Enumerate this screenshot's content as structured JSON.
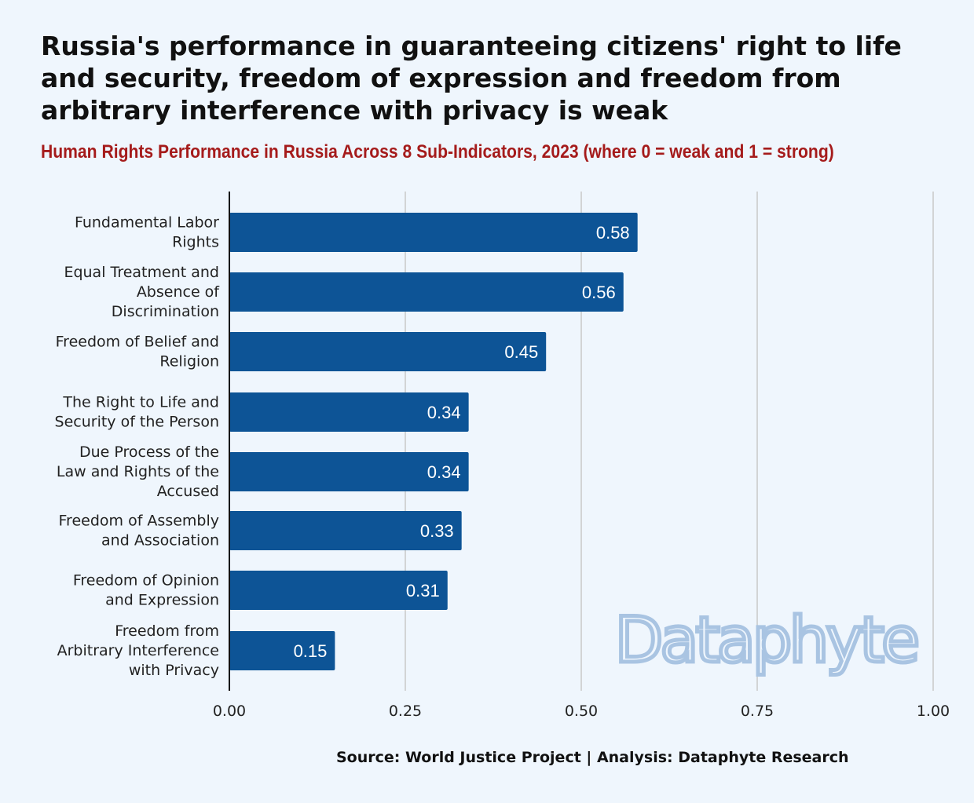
{
  "title": "Russia's performance in guaranteeing citizens' right to life and security, freedom of expression and freedom from arbitrary interference with privacy is weak",
  "subtitle": "Human Rights Performance in Russia Across 8 Sub-Indicators, 2023 (where 0 = weak and 1 = strong)",
  "source": "Source: World Justice Project | Analysis: Dataphyte Research",
  "watermark": "Dataphyte",
  "colors": {
    "background": "#eff6fd",
    "bar": "#0d5496",
    "bar_label": "#ffffff",
    "title": "#111111",
    "subtitle": "#a51b1b",
    "gridline": "#c8c8c8",
    "watermark": "#a9c4e2"
  },
  "chart_data": {
    "type": "bar",
    "orientation": "horizontal",
    "title": "",
    "xlabel": "",
    "ylabel": "",
    "xlim": [
      0,
      1
    ],
    "x_ticks": [
      "0.00",
      "0.25",
      "0.50",
      "0.75",
      "1.00"
    ],
    "grid": "vertical",
    "categories": [
      [
        "Fundamental Labor",
        "Rights"
      ],
      [
        "Equal Treatment and",
        "Absence of",
        "Discrimination"
      ],
      [
        "Freedom of Belief and",
        "Religion"
      ],
      [
        "The Right to Life and",
        "Security of the Person"
      ],
      [
        "Due Process of the",
        "Law and Rights of the",
        "Accused"
      ],
      [
        "Freedom of Assembly",
        "and Association"
      ],
      [
        "Freedom of Opinion",
        "and Expression"
      ],
      [
        "Freedom from",
        "Arbitrary Interference",
        "with Privacy"
      ]
    ],
    "values": [
      0.58,
      0.56,
      0.45,
      0.34,
      0.34,
      0.33,
      0.31,
      0.15
    ],
    "value_labels": [
      "0.58",
      "0.56",
      "0.45",
      "0.34",
      "0.34",
      "0.33",
      "0.31",
      "0.15"
    ]
  }
}
